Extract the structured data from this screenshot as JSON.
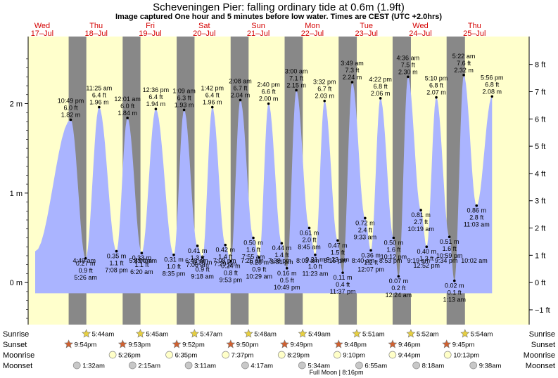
{
  "chart_data": {
    "type": "area",
    "title": "Scheveningen Pier: falling  ordinary tide at 0.6m (1.9ft)",
    "subtitle": "Image captured One hour and 5 minutes before low water. Times are CEST (UTC +2.0hrs)",
    "days": [
      {
        "dow": "Wed",
        "date": "17–Jul"
      },
      {
        "dow": "Thu",
        "date": "18–Jul"
      },
      {
        "dow": "Fri",
        "date": "19–Jul"
      },
      {
        "dow": "Sat",
        "date": "20–Jul"
      },
      {
        "dow": "Sun",
        "date": "21–Jul"
      },
      {
        "dow": "Mon",
        "date": "22–Jul"
      },
      {
        "dow": "Tue",
        "date": "23–Jul"
      },
      {
        "dow": "Wed",
        "date": "24–Jul"
      },
      {
        "dow": "Thu",
        "date": "25–Jul"
      }
    ],
    "y_left_ticks": [
      "0 m",
      "1 m",
      "2 m"
    ],
    "y_right_ticks": [
      "−1 ft",
      "0 ft",
      "1 ft",
      "2 ft",
      "3 ft",
      "4 ft",
      "5 ft",
      "6 ft",
      "7 ft",
      "8 ft"
    ],
    "ylim_m": [
      -0.47,
      2.75
    ],
    "tides": [
      {
        "day": 0,
        "time": "10:49 pm",
        "height_m": 1.82,
        "height_ft": "6.0 ft",
        "type": "high"
      },
      {
        "day": 1,
        "time": "5:26 am",
        "height_m": 0.27,
        "height_ft": "0.9 ft",
        "type": "low"
      },
      {
        "day": 1,
        "time": "11:25 am",
        "height_m": 1.96,
        "height_ft": "6.4 ft",
        "type": "high"
      },
      {
        "day": 1,
        "time": "7:08 pm",
        "height_m": 0.35,
        "height_ft": "1.1 ft",
        "type": "low"
      },
      {
        "day": 2,
        "time": "12:01 am",
        "height_m": 1.84,
        "height_ft": "6.0 ft",
        "type": "high"
      },
      {
        "day": 2,
        "time": "6:20 am",
        "height_m": 0.33,
        "height_ft": "1.1 ft",
        "type": "low"
      },
      {
        "day": 2,
        "time": "12:36 pm",
        "height_m": 1.94,
        "height_ft": "6.4 ft",
        "type": "high"
      },
      {
        "day": 2,
        "time": "8:35 pm",
        "height_m": 0.31,
        "height_ft": "1.0 ft",
        "type": "low"
      },
      {
        "day": 3,
        "time": "1:09 am",
        "height_m": 1.93,
        "height_ft": "6.3 ft",
        "type": "high"
      },
      {
        "day": 3,
        "time": "7:06 am",
        "height_m": 0.41,
        "height_ft": "1.3 ft",
        "type": "low"
      },
      {
        "day": 3,
        "time": "1:42 pm",
        "height_m": 1.96,
        "height_ft": "6.4 ft",
        "type": "high"
      },
      {
        "day": 3,
        "time": "9:18 am",
        "height_m": 0.28,
        "height_ft": "0.9 ft",
        "type": "low"
      },
      {
        "day": 3,
        "time": "7:29 pm",
        "height_m": 0.42,
        "height_ft": "1.4 ft",
        "type": "low"
      },
      {
        "day": 3,
        "time": "9:53 pm",
        "height_m": 0.24,
        "height_ft": "0.8 ft",
        "type": "low"
      },
      {
        "day": 4,
        "time": "2:08 am",
        "height_m": 2.04,
        "height_ft": "6.7 ft",
        "type": "high"
      },
      {
        "day": 4,
        "time": "7:55 am",
        "height_m": 0.5,
        "height_ft": "1.6 ft",
        "type": "low"
      },
      {
        "day": 4,
        "time": "2:40 pm",
        "height_m": 2.0,
        "height_ft": "6.6 ft",
        "type": "high"
      },
      {
        "day": 4,
        "time": "10:29 am",
        "height_m": 0.28,
        "height_ft": "0.9 ft",
        "type": "low"
      },
      {
        "day": 4,
        "time": "8:31 pm",
        "height_m": 0.44,
        "height_ft": "1.4 ft",
        "type": "low"
      },
      {
        "day": 4,
        "time": "10:49 pm",
        "height_m": 0.16,
        "height_ft": "0.5 ft",
        "type": "low"
      },
      {
        "day": 5,
        "time": "3:00 am",
        "height_m": 2.15,
        "height_ft": "7.1 ft",
        "type": "high"
      },
      {
        "day": 5,
        "time": "8:45 am",
        "height_m": 0.61,
        "height_ft": "2.0 ft",
        "type": "low"
      },
      {
        "day": 5,
        "time": "3:32 pm",
        "height_m": 2.03,
        "height_ft": "6.7 ft",
        "type": "high"
      },
      {
        "day": 5,
        "time": "11:23 am",
        "height_m": 0.31,
        "height_ft": "1.0 ft",
        "type": "low"
      },
      {
        "day": 5,
        "time": "9:23 pm",
        "height_m": 0.47,
        "height_ft": "1.5 ft",
        "type": "low"
      },
      {
        "day": 5,
        "time": "11:37 pm",
        "height_m": 0.11,
        "height_ft": "0.4 ft",
        "type": "low"
      },
      {
        "day": 6,
        "time": "3:49 am",
        "height_m": 2.24,
        "height_ft": "7.3 ft",
        "type": "high"
      },
      {
        "day": 6,
        "time": "9:33 am",
        "height_m": 0.72,
        "height_ft": "2.4 ft",
        "type": "low"
      },
      {
        "day": 6,
        "time": "4:22 pm",
        "height_m": 2.06,
        "height_ft": "6.8 ft",
        "type": "high"
      },
      {
        "day": 6,
        "time": "12:07 pm",
        "height_m": 0.36,
        "height_ft": "1.2 ft",
        "type": "low"
      },
      {
        "day": 6,
        "time": "10:12 pm",
        "height_m": 0.5,
        "height_ft": "1.6 ft",
        "type": "low"
      },
      {
        "day": 7,
        "time": "12:24 am",
        "height_m": 0.07,
        "height_ft": "0.2 ft",
        "type": "low"
      },
      {
        "day": 7,
        "time": "4:36 am",
        "height_m": 2.3,
        "height_ft": "7.5 ft",
        "type": "high"
      },
      {
        "day": 7,
        "time": "10:19 am",
        "height_m": 0.81,
        "height_ft": "2.7 ft",
        "type": "low"
      },
      {
        "day": 7,
        "time": "5:10 pm",
        "height_m": 2.07,
        "height_ft": "6.8 ft",
        "type": "high"
      },
      {
        "day": 7,
        "time": "12:52 pm",
        "height_m": 0.4,
        "height_ft": "1.3 ft",
        "type": "low"
      },
      {
        "day": 7,
        "time": "10:59 pm",
        "height_m": 0.51,
        "height_ft": "1.6 ft",
        "type": "low"
      },
      {
        "day": 8,
        "time": "1:13 am",
        "height_m": 0.02,
        "height_ft": "0.1 ft",
        "type": "low"
      },
      {
        "day": 8,
        "time": "5:22 am",
        "height_m": 2.32,
        "height_ft": "7.6 ft",
        "type": "high"
      },
      {
        "day": 8,
        "time": "11:03 am",
        "height_m": 0.86,
        "height_ft": "2.8 ft",
        "type": "low"
      },
      {
        "day": 8,
        "time": "5:56 pm",
        "height_m": 2.08,
        "height_ft": "6.8 ft",
        "type": "high"
      }
    ],
    "extra_labels": [
      {
        "day": 1,
        "time": "4:49 am"
      },
      {
        "day": 2,
        "time": "5:49 am"
      },
      {
        "day": 2,
        "time": "8:00 am"
      },
      {
        "day": 3,
        "time": "6:43 am"
      },
      {
        "day": 3,
        "time": "7:08 pm"
      },
      {
        "day": 4,
        "time": "7:26 am"
      },
      {
        "day": 4,
        "time": "7:38 pm"
      },
      {
        "day": 5,
        "time": "8:03 am"
      },
      {
        "day": 5,
        "time": "8:15 pm"
      },
      {
        "day": 6,
        "time": "8:40 am"
      },
      {
        "day": 6,
        "time": "8:53 pm"
      },
      {
        "day": 7,
        "time": "9:19 am"
      },
      {
        "day": 7,
        "time": "9:34 pm"
      },
      {
        "day": 8,
        "time": "10:02 am"
      }
    ],
    "sunrise": [
      "5:44am",
      "5:45am",
      "5:47am",
      "5:48am",
      "5:49am",
      "5:51am",
      "5:52am",
      "5:54am"
    ],
    "sunset": [
      "9:54pm",
      "9:53pm",
      "9:52pm",
      "9:50pm",
      "9:49pm",
      "9:48pm",
      "9:46pm",
      "9:45pm"
    ],
    "moonrise": [
      "5:26pm",
      "6:35pm",
      "7:37pm",
      "8:29pm",
      "9:10pm",
      "9:44pm",
      "10:13pm"
    ],
    "moonset": [
      "1:32am",
      "2:15am",
      "3:11am",
      "4:17am",
      "5:34am",
      "6:55am",
      "8:18am",
      "9:38am"
    ],
    "row_labels": {
      "sunrise": "Sunrise",
      "sunset": "Sunset",
      "moonrise": "Moonrise",
      "moonset": "Moonset"
    },
    "moon_phase": "Full Moon | 8:16pm",
    "colors": {
      "day": "#ffffcc",
      "night": "#888888",
      "water": "#aab4ff",
      "day_label": "#d40000",
      "sun_icon": "#e8d040",
      "sunset_icon": "#d06030"
    }
  }
}
